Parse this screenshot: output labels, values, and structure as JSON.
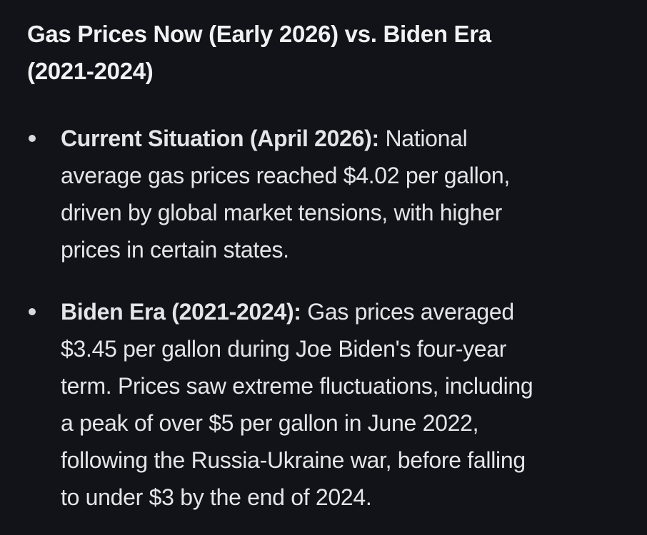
{
  "colors": {
    "background": "#111318",
    "heading_text": "#f0f1f3",
    "body_text": "#e4e5e8",
    "bullet_dot": "#d8d9dc"
  },
  "heading": {
    "text": "Gas Prices Now (Early 2026) vs. Biden Era (2021-2024)",
    "lines": [
      "Gas Prices Now (Early 2026) vs. Biden Era",
      "(2021-2024)"
    ]
  },
  "bullets": [
    {
      "lead": "Current Situation (April 2026):",
      "text": "Current Situation (April 2026): National average gas prices reached $4.02 per gallon, driven by global market tensions, with higher prices in certain states.",
      "lines": [
        [
          {
            "bold": true,
            "t": "Current Situation (April 2026):"
          },
          {
            "bold": false,
            "t": " National"
          }
        ],
        [
          {
            "bold": false,
            "t": "average gas prices reached $4.02 per gallon,"
          }
        ],
        [
          {
            "bold": false,
            "t": "driven by global market tensions, with higher"
          }
        ],
        [
          {
            "bold": false,
            "t": "prices in certain states."
          }
        ]
      ]
    },
    {
      "lead": "Biden Era (2021-2024):",
      "text": "Biden Era (2021-2024): Gas prices averaged $3.45 per gallon during Joe Biden's four-year term. Prices saw extreme fluctuations, including a peak of over $5 per gallon in June 2022, following the Russia-Ukraine war, before falling to under $3 by the end of 2024.",
      "lines": [
        [
          {
            "bold": true,
            "t": "Biden Era (2021-2024):"
          },
          {
            "bold": false,
            "t": " Gas prices averaged"
          }
        ],
        [
          {
            "bold": false,
            "t": "$3.45 per gallon during Joe Biden's four-year"
          }
        ],
        [
          {
            "bold": false,
            "t": "term. Prices saw extreme fluctuations, including"
          }
        ],
        [
          {
            "bold": false,
            "t": "a peak of over $5 per gallon in June 2022,"
          }
        ],
        [
          {
            "bold": false,
            "t": "following the Russia-Ukraine war, before falling"
          }
        ],
        [
          {
            "bold": false,
            "t": "to under $3 by the end of 2024."
          }
        ]
      ]
    }
  ]
}
